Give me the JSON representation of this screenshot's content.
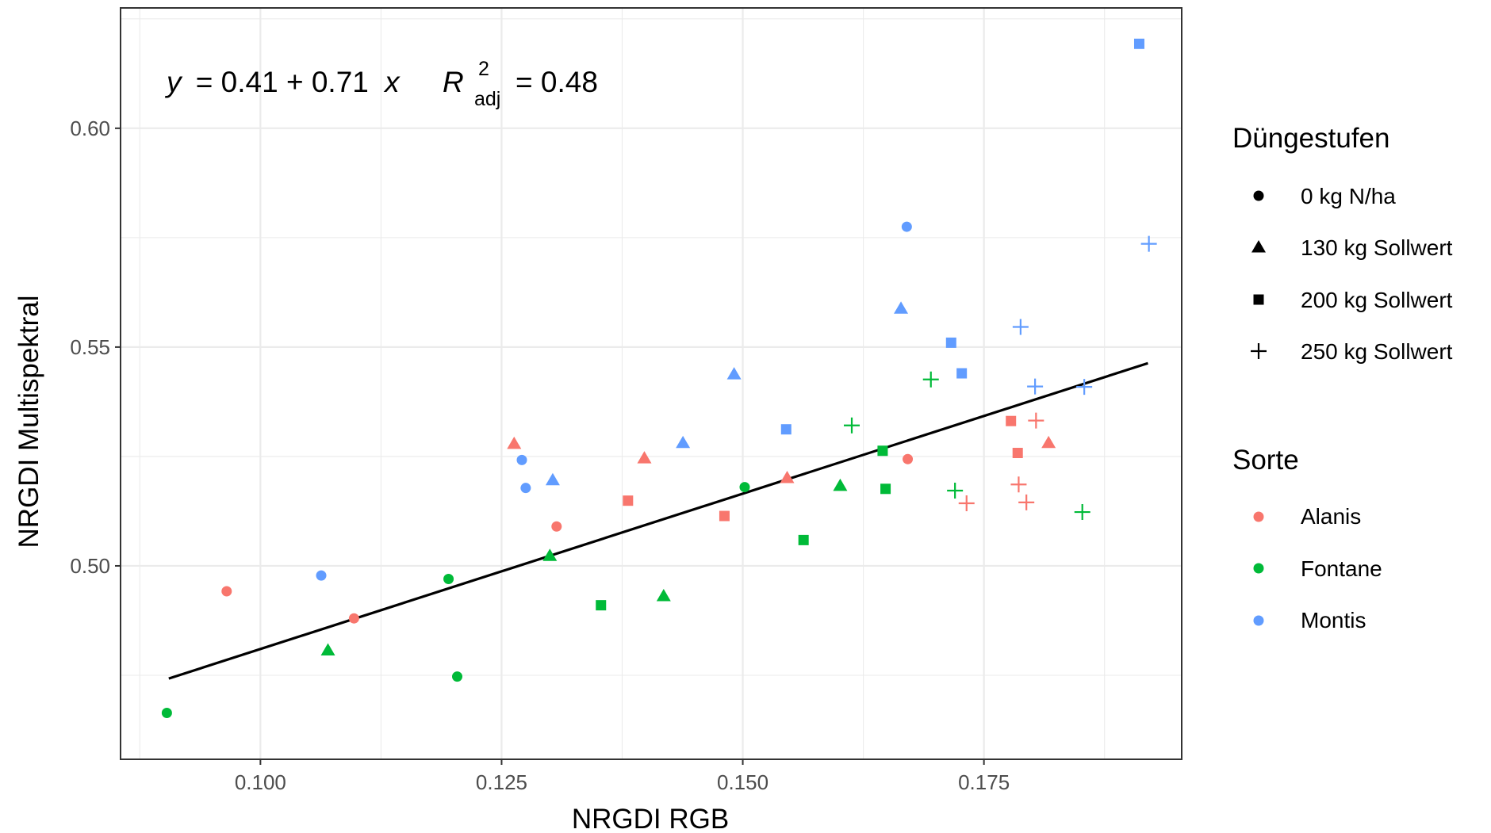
{
  "chart_data": {
    "type": "scatter",
    "xlabel": "NRGDI RGB",
    "ylabel": "NRGDI Multispektral",
    "xlim": [
      0.0855,
      0.1955
    ],
    "ylim": [
      0.4558,
      0.6275
    ],
    "x_ticks": [
      0.1,
      0.125,
      0.15,
      0.175
    ],
    "x_tick_labels": [
      "0.100",
      "0.125",
      "0.150",
      "0.175"
    ],
    "y_ticks": [
      0.5,
      0.55,
      0.6
    ],
    "y_tick_labels": [
      "0.50",
      "0.55",
      "0.60"
    ],
    "grid": true,
    "annotation": {
      "y_var": "y",
      "equation": "= 0.41 + 0.71",
      "x_var": "x",
      "r_symbol": "R",
      "r_superscript": "2",
      "r_subscript": "adj",
      "r_value": "= 0.48"
    },
    "regression": {
      "intercept": 0.41,
      "slope": 0.71,
      "x_range": [
        0.0905,
        0.192
      ]
    },
    "legend_placement": "right",
    "legend_shape": {
      "title": "Düngestufen",
      "entries": [
        {
          "label": "0 kg N/ha",
          "shape": "circle"
        },
        {
          "label": "130 kg Sollwert",
          "shape": "triangle"
        },
        {
          "label": "200 kg Sollwert",
          "shape": "square"
        },
        {
          "label": "250 kg Sollwert",
          "shape": "plus"
        }
      ]
    },
    "legend_color": {
      "title": "Sorte",
      "entries": [
        {
          "label": "Alanis",
          "color": "#f8766d"
        },
        {
          "label": "Fontane",
          "color": "#00ba38"
        },
        {
          "label": "Montis",
          "color": "#619cff"
        }
      ]
    },
    "points": [
      {
        "x": 0.0965,
        "y": 0.4942,
        "sorte": "Alanis",
        "shape": "circle"
      },
      {
        "x": 0.1097,
        "y": 0.488,
        "sorte": "Alanis",
        "shape": "circle"
      },
      {
        "x": 0.1307,
        "y": 0.509,
        "sorte": "Alanis",
        "shape": "circle"
      },
      {
        "x": 0.1671,
        "y": 0.5244,
        "sorte": "Alanis",
        "shape": "circle"
      },
      {
        "x": 0.1263,
        "y": 0.5279,
        "sorte": "Alanis",
        "shape": "triangle"
      },
      {
        "x": 0.1398,
        "y": 0.5246,
        "sorte": "Alanis",
        "shape": "triangle"
      },
      {
        "x": 0.1546,
        "y": 0.5201,
        "sorte": "Alanis",
        "shape": "triangle"
      },
      {
        "x": 0.1817,
        "y": 0.5281,
        "sorte": "Alanis",
        "shape": "triangle"
      },
      {
        "x": 0.1381,
        "y": 0.5149,
        "sorte": "Alanis",
        "shape": "square"
      },
      {
        "x": 0.1481,
        "y": 0.5114,
        "sorte": "Alanis",
        "shape": "square"
      },
      {
        "x": 0.1778,
        "y": 0.5331,
        "sorte": "Alanis",
        "shape": "square"
      },
      {
        "x": 0.1785,
        "y": 0.5258,
        "sorte": "Alanis",
        "shape": "square"
      },
      {
        "x": 0.1732,
        "y": 0.5143,
        "sorte": "Alanis",
        "shape": "plus"
      },
      {
        "x": 0.1786,
        "y": 0.5186,
        "sorte": "Alanis",
        "shape": "plus"
      },
      {
        "x": 0.1794,
        "y": 0.5145,
        "sorte": "Alanis",
        "shape": "plus"
      },
      {
        "x": 0.1804,
        "y": 0.5332,
        "sorte": "Alanis",
        "shape": "plus"
      },
      {
        "x": 0.0903,
        "y": 0.4664,
        "sorte": "Fontane",
        "shape": "circle"
      },
      {
        "x": 0.1195,
        "y": 0.497,
        "sorte": "Fontane",
        "shape": "circle"
      },
      {
        "x": 0.1204,
        "y": 0.4747,
        "sorte": "Fontane",
        "shape": "circle"
      },
      {
        "x": 0.1502,
        "y": 0.518,
        "sorte": "Fontane",
        "shape": "circle"
      },
      {
        "x": 0.107,
        "y": 0.4807,
        "sorte": "Fontane",
        "shape": "triangle"
      },
      {
        "x": 0.13,
        "y": 0.5023,
        "sorte": "Fontane",
        "shape": "triangle"
      },
      {
        "x": 0.1418,
        "y": 0.4931,
        "sorte": "Fontane",
        "shape": "triangle"
      },
      {
        "x": 0.1601,
        "y": 0.5183,
        "sorte": "Fontane",
        "shape": "triangle"
      },
      {
        "x": 0.1353,
        "y": 0.491,
        "sorte": "Fontane",
        "shape": "square"
      },
      {
        "x": 0.1563,
        "y": 0.5059,
        "sorte": "Fontane",
        "shape": "square"
      },
      {
        "x": 0.1645,
        "y": 0.5263,
        "sorte": "Fontane",
        "shape": "square"
      },
      {
        "x": 0.1648,
        "y": 0.5176,
        "sorte": "Fontane",
        "shape": "square"
      },
      {
        "x": 0.1613,
        "y": 0.5321,
        "sorte": "Fontane",
        "shape": "plus"
      },
      {
        "x": 0.1695,
        "y": 0.5426,
        "sorte": "Fontane",
        "shape": "plus"
      },
      {
        "x": 0.172,
        "y": 0.5172,
        "sorte": "Fontane",
        "shape": "plus"
      },
      {
        "x": 0.1852,
        "y": 0.5123,
        "sorte": "Fontane",
        "shape": "plus"
      },
      {
        "x": 0.1063,
        "y": 0.4978,
        "sorte": "Montis",
        "shape": "circle"
      },
      {
        "x": 0.1271,
        "y": 0.5242,
        "sorte": "Montis",
        "shape": "circle"
      },
      {
        "x": 0.1275,
        "y": 0.5178,
        "sorte": "Montis",
        "shape": "circle"
      },
      {
        "x": 0.167,
        "y": 0.5775,
        "sorte": "Montis",
        "shape": "circle"
      },
      {
        "x": 0.1303,
        "y": 0.5196,
        "sorte": "Montis",
        "shape": "triangle"
      },
      {
        "x": 0.1438,
        "y": 0.5281,
        "sorte": "Montis",
        "shape": "triangle"
      },
      {
        "x": 0.1491,
        "y": 0.5438,
        "sorte": "Montis",
        "shape": "triangle"
      },
      {
        "x": 0.1664,
        "y": 0.5588,
        "sorte": "Montis",
        "shape": "triangle"
      },
      {
        "x": 0.1545,
        "y": 0.5312,
        "sorte": "Montis",
        "shape": "square"
      },
      {
        "x": 0.1716,
        "y": 0.551,
        "sorte": "Montis",
        "shape": "square"
      },
      {
        "x": 0.1727,
        "y": 0.544,
        "sorte": "Montis",
        "shape": "square"
      },
      {
        "x": 0.1911,
        "y": 0.6193,
        "sorte": "Montis",
        "shape": "square"
      },
      {
        "x": 0.1788,
        "y": 0.5546,
        "sorte": "Montis",
        "shape": "plus"
      },
      {
        "x": 0.1803,
        "y": 0.541,
        "sorte": "Montis",
        "shape": "plus"
      },
      {
        "x": 0.1854,
        "y": 0.5409,
        "sorte": "Montis",
        "shape": "plus"
      },
      {
        "x": 0.1921,
        "y": 0.5736,
        "sorte": "Montis",
        "shape": "plus"
      }
    ]
  }
}
